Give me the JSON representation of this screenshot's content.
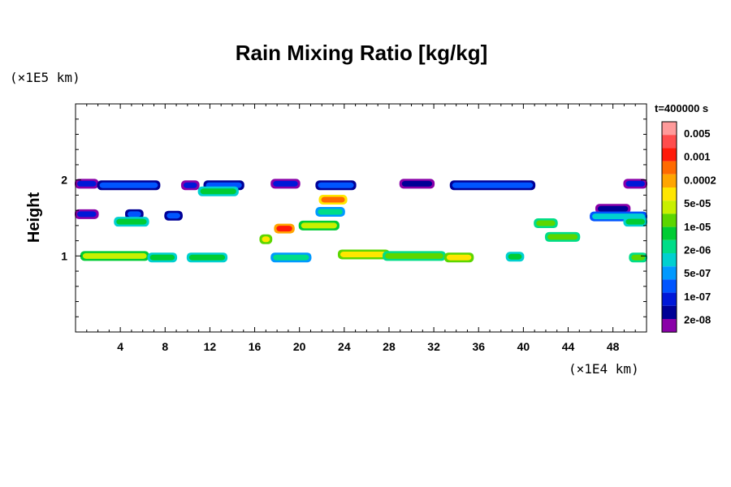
{
  "chart_data": {
    "type": "heatmap",
    "title": "Rain Mixing Ratio [kg/kg]",
    "ylabel": "Height",
    "xlabel": "",
    "x_scale_label": "(×1E4 km)",
    "y_scale_label": "(×1E5 km)",
    "time_label": "t=400000 s",
    "xlim": [
      0,
      51
    ],
    "ylim": [
      0,
      3
    ],
    "x_ticks": [
      4,
      8,
      12,
      16,
      20,
      24,
      28,
      32,
      36,
      40,
      44,
      48
    ],
    "y_ticks": [
      1,
      2
    ],
    "colorbar": {
      "labels": [
        "0.005",
        "0.001",
        "0.0002",
        "5e-05",
        "1e-05",
        "2e-06",
        "5e-07",
        "1e-07",
        "2e-08"
      ],
      "colors": [
        "#ff9a9a",
        "#ff4d4d",
        "#ff1a0a",
        "#ff6a00",
        "#ffa500",
        "#ffe600",
        "#c8f000",
        "#5cd600",
        "#00cc33",
        "#00dd88",
        "#00d0d0",
        "#0099ff",
        "#0055ff",
        "#0018d8",
        "#000096",
        "#8a00a8"
      ]
    },
    "features": [
      {
        "x0": 0.0,
        "x1": 2.0,
        "y": 1.95,
        "level": 13
      },
      {
        "x0": 2.0,
        "x1": 7.5,
        "y": 1.93,
        "level": 12
      },
      {
        "x0": 9.5,
        "x1": 11.0,
        "y": 1.93,
        "level": 13
      },
      {
        "x0": 11.5,
        "x1": 15.0,
        "y": 1.93,
        "level": 12
      },
      {
        "x0": 17.5,
        "x1": 20.0,
        "y": 1.95,
        "level": 13
      },
      {
        "x0": 21.5,
        "x1": 25.0,
        "y": 1.93,
        "level": 12
      },
      {
        "x0": 29.0,
        "x1": 32.0,
        "y": 1.95,
        "level": 14
      },
      {
        "x0": 33.5,
        "x1": 41.0,
        "y": 1.93,
        "level": 12
      },
      {
        "x0": 49.0,
        "x1": 51.0,
        "y": 1.95,
        "level": 13
      },
      {
        "x0": 11.0,
        "x1": 14.5,
        "y": 1.85,
        "level": 8
      },
      {
        "x0": 21.8,
        "x1": 24.2,
        "y": 1.74,
        "level": 3
      },
      {
        "x0": 21.5,
        "x1": 24.0,
        "y": 1.58,
        "level": 9
      },
      {
        "x0": 0.0,
        "x1": 2.0,
        "y": 1.55,
        "level": 13
      },
      {
        "x0": 4.5,
        "x1": 6.0,
        "y": 1.55,
        "level": 12
      },
      {
        "x0": 8.0,
        "x1": 9.5,
        "y": 1.53,
        "level": 12
      },
      {
        "x0": 3.5,
        "x1": 6.5,
        "y": 1.45,
        "level": 8
      },
      {
        "x0": 46.5,
        "x1": 49.5,
        "y": 1.62,
        "level": 14
      },
      {
        "x0": 46.0,
        "x1": 51.0,
        "y": 1.52,
        "level": 10
      },
      {
        "x0": 41.0,
        "x1": 43.0,
        "y": 1.43,
        "level": 7
      },
      {
        "x0": 49.0,
        "x1": 51.0,
        "y": 1.45,
        "level": 8
      },
      {
        "x0": 17.8,
        "x1": 19.5,
        "y": 1.36,
        "level": 2
      },
      {
        "x0": 20.0,
        "x1": 23.5,
        "y": 1.4,
        "level": 6
      },
      {
        "x0": 16.5,
        "x1": 17.5,
        "y": 1.22,
        "level": 5
      },
      {
        "x0": 42.0,
        "x1": 45.0,
        "y": 1.25,
        "level": 7
      },
      {
        "x0": 0.5,
        "x1": 6.5,
        "y": 1.0,
        "level": 6
      },
      {
        "x0": 6.5,
        "x1": 9.0,
        "y": 0.98,
        "level": 8
      },
      {
        "x0": 10.0,
        "x1": 13.5,
        "y": 0.98,
        "level": 8
      },
      {
        "x0": 17.5,
        "x1": 21.0,
        "y": 0.98,
        "level": 9
      },
      {
        "x0": 23.5,
        "x1": 28.0,
        "y": 1.02,
        "level": 5
      },
      {
        "x0": 27.5,
        "x1": 33.0,
        "y": 1.0,
        "level": 7
      },
      {
        "x0": 33.0,
        "x1": 35.5,
        "y": 0.98,
        "level": 5
      },
      {
        "x0": 38.5,
        "x1": 40.0,
        "y": 0.99,
        "level": 8
      },
      {
        "x0": 49.5,
        "x1": 51.0,
        "y": 0.98,
        "level": 7
      }
    ]
  }
}
